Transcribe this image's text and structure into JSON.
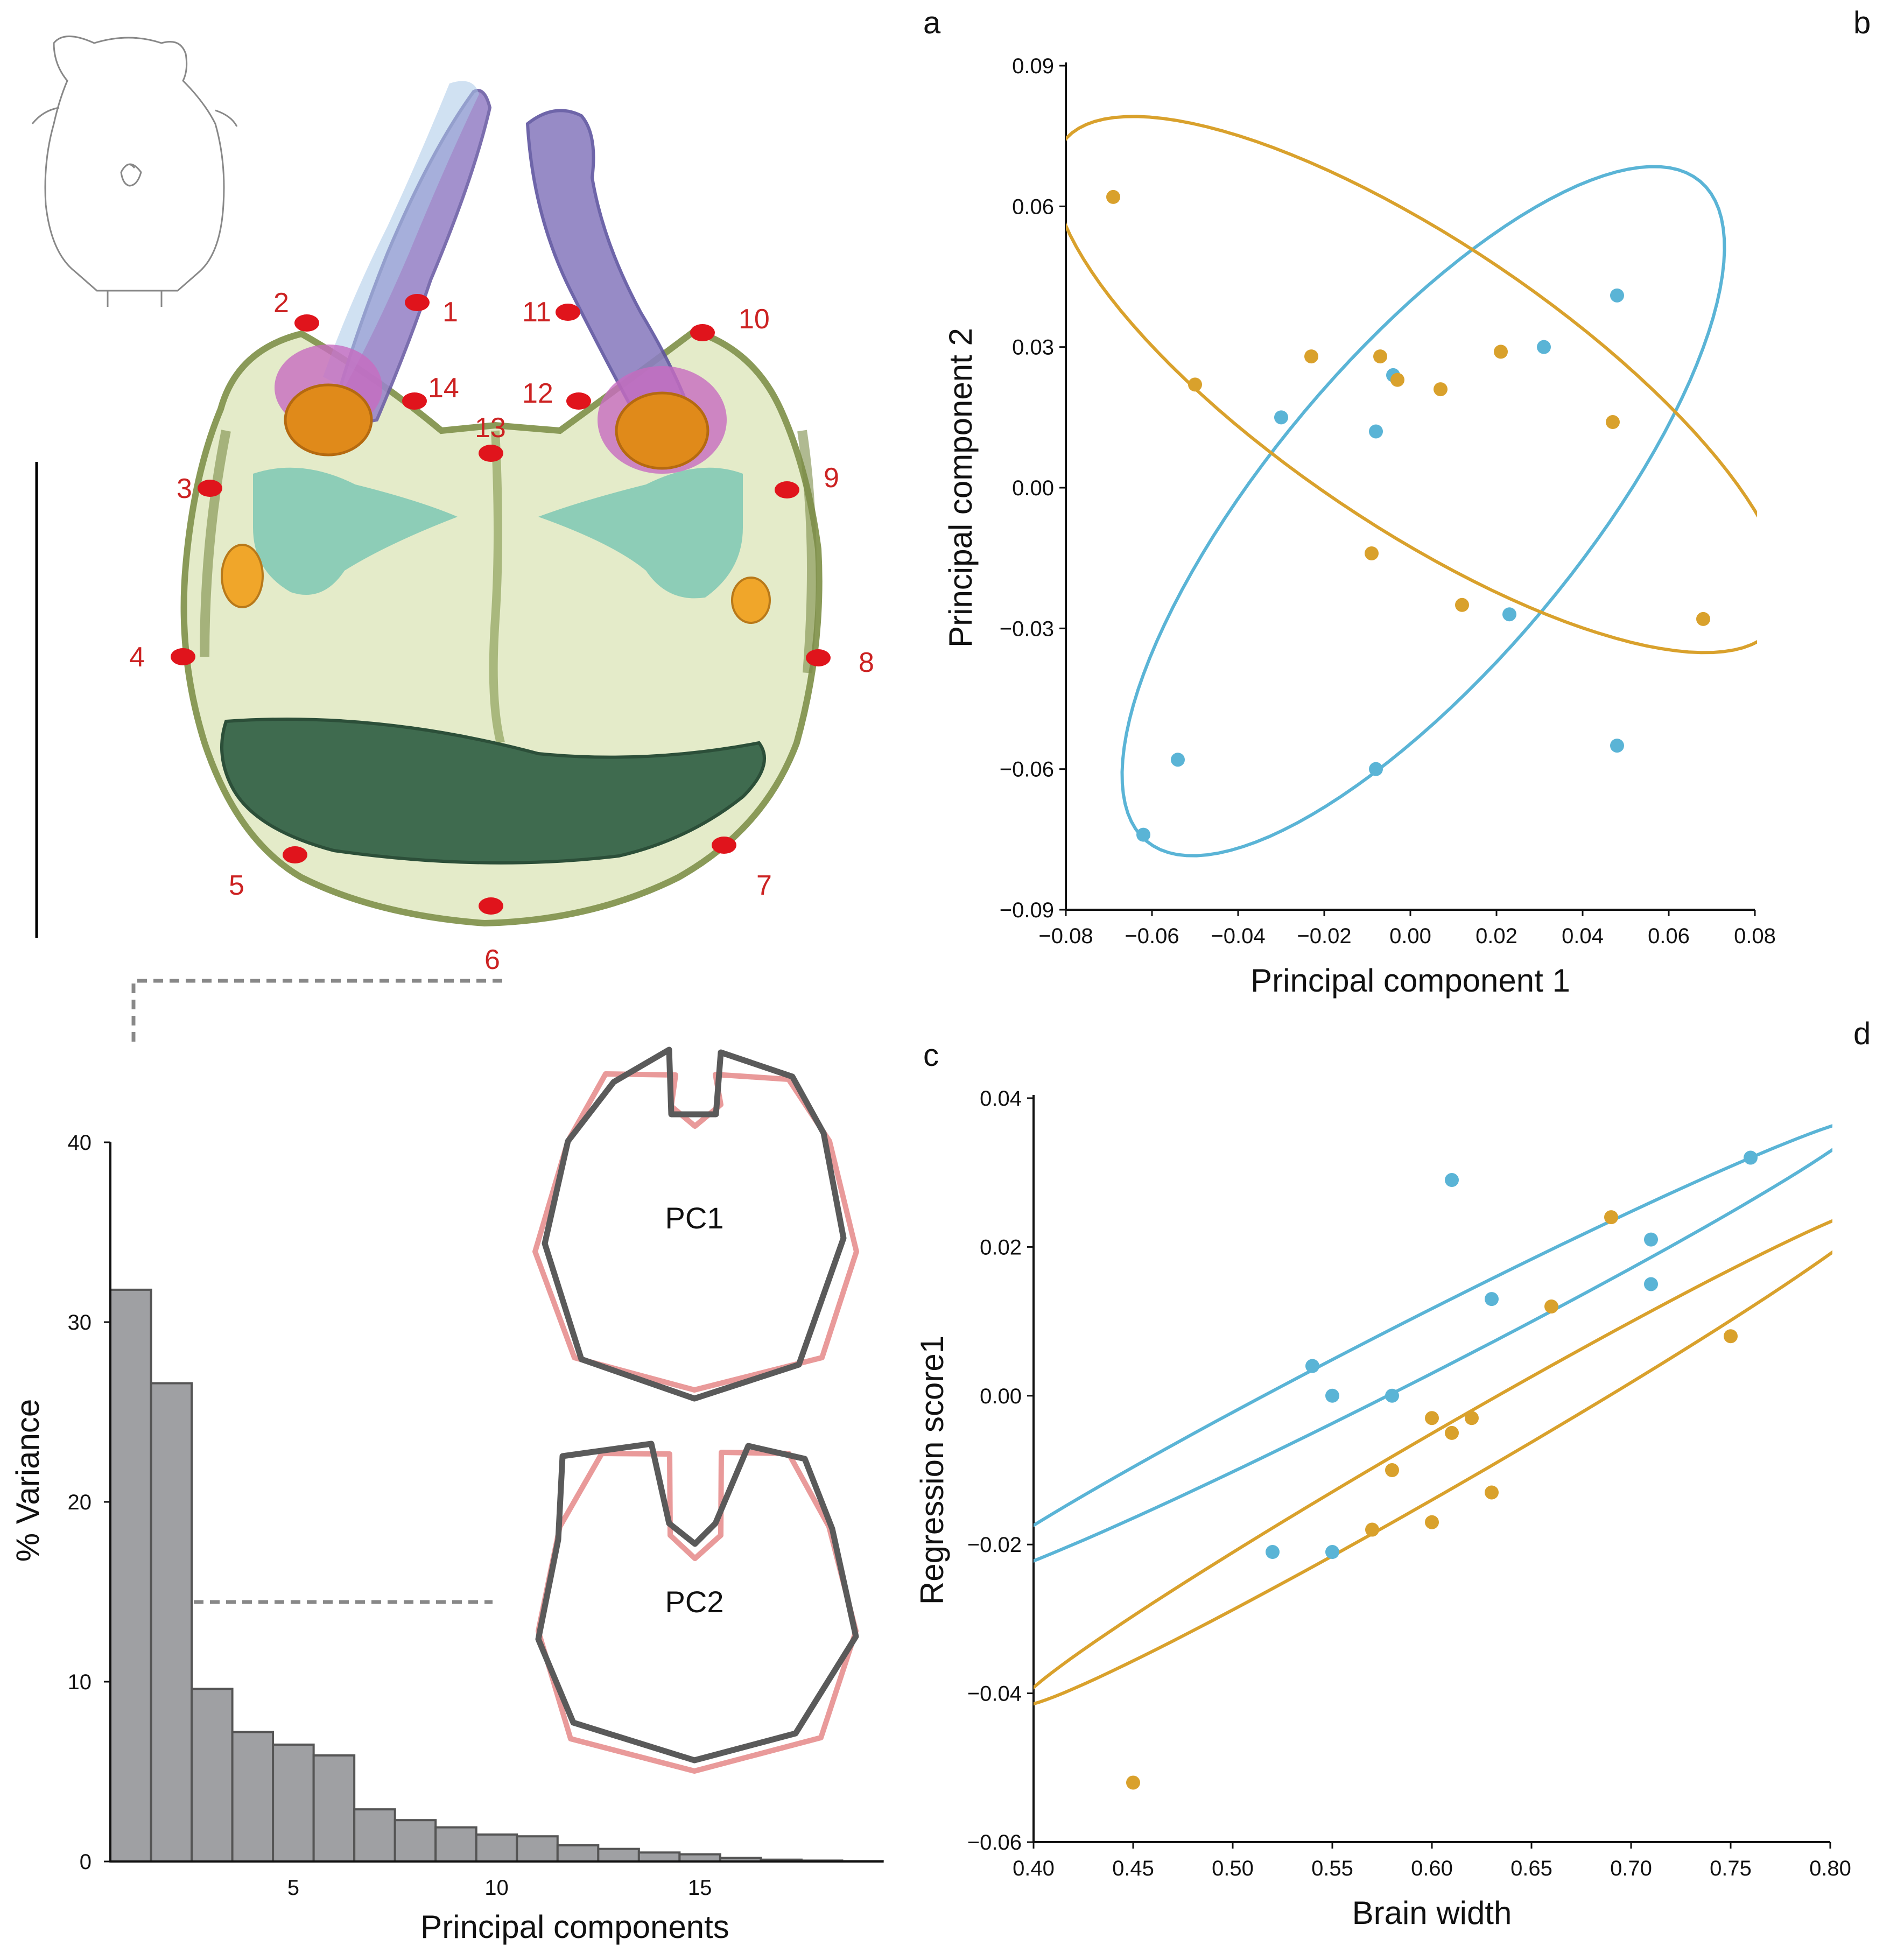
{
  "panels": {
    "a": "a",
    "b": "b",
    "c": "c",
    "d": "d"
  },
  "colors": {
    "blue": "#5ab4d6",
    "orange": "#d9a12c",
    "landmark": "#e0141c",
    "bars": "#9fa0a3",
    "pink": "#e99a9a",
    "dark": "#5a5a5a"
  },
  "specimen": {
    "landmark_labels": [
      "1",
      "2",
      "3",
      "4",
      "5",
      "6",
      "7",
      "8",
      "9",
      "10",
      "11",
      "12",
      "13",
      "14"
    ]
  },
  "chart_data": [
    {
      "id": "pca",
      "type": "scatter",
      "xlabel": "Principal component 1",
      "ylabel": "Principal component 2",
      "xlim": [
        -0.08,
        0.08
      ],
      "ylim": [
        -0.09,
        0.09
      ],
      "xticks": [
        -0.08,
        -0.06,
        -0.04,
        -0.02,
        0.0,
        0.02,
        0.04,
        0.06,
        0.08
      ],
      "xtick_labels": [
        "−0.08",
        "−0.06",
        "−0.04",
        "−0.02",
        "0.00",
        "0.02",
        "0.04",
        "0.06",
        "0.08"
      ],
      "yticks": [
        -0.09,
        -0.06,
        -0.03,
        0.0,
        0.03,
        0.06,
        0.09
      ],
      "ytick_labels": [
        "−0.09",
        "−0.06",
        "−0.03",
        "0.00",
        "0.03",
        "0.06",
        "0.09"
      ],
      "series": [
        {
          "name": "blue",
          "color": "#5ab4d6",
          "x": [
            0.048,
            0.031,
            -0.03,
            -0.004,
            -0.008,
            0.023,
            -0.054,
            -0.008,
            -0.062,
            0.048
          ],
          "y": [
            0.041,
            0.03,
            0.015,
            0.024,
            0.012,
            -0.027,
            -0.058,
            -0.06,
            -0.074,
            -0.055
          ]
        },
        {
          "name": "orange",
          "color": "#d9a12c",
          "x": [
            -0.069,
            -0.05,
            -0.023,
            -0.007,
            -0.003,
            0.007,
            0.021,
            0.047,
            -0.009,
            0.012,
            0.068
          ],
          "y": [
            0.062,
            0.022,
            0.028,
            0.028,
            0.023,
            0.021,
            0.029,
            0.014,
            -0.014,
            -0.025,
            -0.028
          ]
        }
      ],
      "ellipses": [
        {
          "color": "#5ab4d6",
          "cx": 0.003,
          "cy": -0.005,
          "rx": 0.1,
          "ry": 0.036,
          "angle_deg": 50
        },
        {
          "color": "#d9a12c",
          "cx": 0.002,
          "cy": 0.022,
          "rx": 0.1,
          "ry": 0.033,
          "angle_deg": -34
        }
      ]
    },
    {
      "id": "regression",
      "type": "scatter",
      "xlabel": "Brain width",
      "ylabel": "Regression score1",
      "xlim": [
        0.4,
        0.8
      ],
      "ylim": [
        -0.06,
        0.04
      ],
      "xticks": [
        0.4,
        0.45,
        0.5,
        0.55,
        0.6,
        0.65,
        0.7,
        0.75,
        0.8
      ],
      "xtick_labels": [
        "0.40",
        "0.45",
        "0.50",
        "0.55",
        "0.60",
        "0.65",
        "0.70",
        "0.75",
        "0.80"
      ],
      "yticks": [
        -0.06,
        -0.04,
        -0.02,
        0.0,
        0.02,
        0.04
      ],
      "ytick_labels": [
        "−0.06",
        "−0.04",
        "−0.02",
        "0.00",
        "0.02",
        "0.04"
      ],
      "series": [
        {
          "name": "blue",
          "color": "#5ab4d6",
          "x": [
            0.61,
            0.76,
            0.71,
            0.71,
            0.63,
            0.54,
            0.55,
            0.58,
            0.52,
            0.55
          ],
          "y": [
            0.029,
            0.032,
            0.021,
            0.015,
            0.013,
            0.004,
            0.0,
            0.0,
            -0.021,
            -0.021
          ]
        },
        {
          "name": "orange",
          "color": "#d9a12c",
          "x": [
            0.69,
            0.66,
            0.75,
            0.6,
            0.62,
            0.61,
            0.58,
            0.63,
            0.57,
            0.6,
            0.45
          ],
          "y": [
            0.024,
            0.012,
            0.008,
            -0.003,
            -0.003,
            -0.005,
            -0.01,
            -0.013,
            -0.018,
            -0.017,
            -0.052
          ]
        }
      ],
      "ellipses": [
        {
          "color": "#5ab4d6",
          "cx": 0.59,
          "cy": 0.006,
          "rx": 0.255,
          "ry": 0.0145,
          "angle_deg": 27
        },
        {
          "color": "#d9a12c",
          "cx": 0.61,
          "cy": -0.008,
          "rx": 0.25,
          "ry": 0.0145,
          "angle_deg": 30
        }
      ]
    },
    {
      "id": "variance",
      "type": "bar",
      "xlabel": "Principal components",
      "ylabel": "% Variance",
      "xlim": [
        0.5,
        19.5
      ],
      "ylim": [
        0,
        40
      ],
      "xticks": [
        5,
        10,
        15
      ],
      "xtick_labels": [
        "5",
        "10",
        "15"
      ],
      "yticks": [
        0,
        10,
        20,
        30,
        40
      ],
      "ytick_labels": [
        "0",
        "10",
        "20",
        "30",
        "40"
      ],
      "categories": [
        1,
        2,
        3,
        4,
        5,
        6,
        7,
        8,
        9,
        10,
        11,
        12,
        13,
        14,
        15,
        16,
        17,
        18,
        19
      ],
      "values": [
        31.8,
        26.6,
        9.6,
        7.2,
        6.5,
        5.9,
        2.9,
        2.3,
        1.9,
        1.5,
        1.4,
        0.9,
        0.7,
        0.5,
        0.4,
        0.2,
        0.1,
        0.05,
        0.02
      ],
      "color": "#9fa0a3"
    }
  ],
  "shapes": [
    {
      "label": "PC1"
    },
    {
      "label": "PC2"
    }
  ]
}
